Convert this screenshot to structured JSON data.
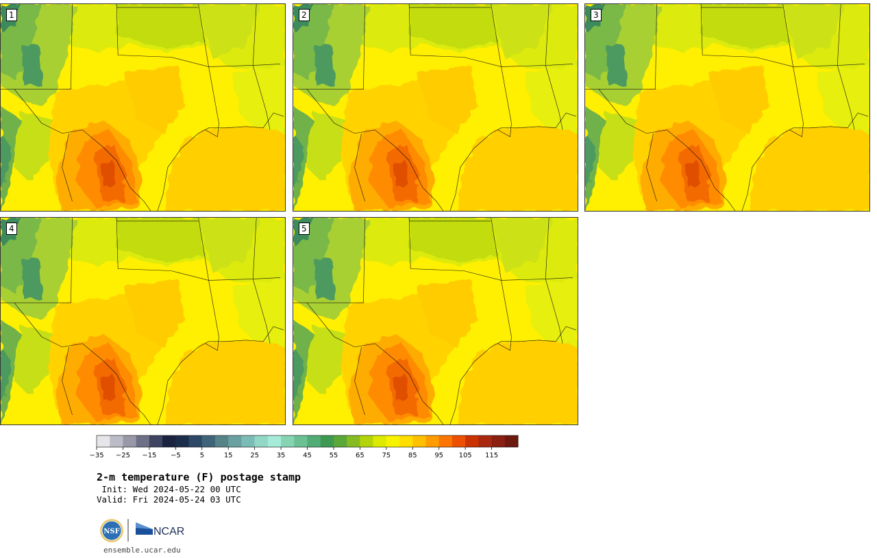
{
  "panels": [
    {
      "label": "1"
    },
    {
      "label": "2"
    },
    {
      "label": "3"
    },
    {
      "label": "4"
    },
    {
      "label": "5"
    }
  ],
  "title": "2-m temperature (F) postage stamp",
  "init_line": " Init: Wed 2024-05-22 00 UTC",
  "valid_line": "Valid: Fri 2024-05-24 03 UTC",
  "logos": {
    "nsf": "NSF",
    "ncar": "NCAR"
  },
  "website": "ensemble.ucar.edu",
  "colorbar": {
    "min": -35,
    "max": 120,
    "step": 5,
    "tick_labels": [
      "−35",
      "−25",
      "−15",
      "−5",
      "5",
      "15",
      "25",
      "35",
      "45",
      "55",
      "65",
      "75",
      "85",
      "95",
      "105",
      "115"
    ],
    "colors": [
      "#e6e6ea",
      "#bcbcc8",
      "#9898a8",
      "#6e7088",
      "#3e4462",
      "#1a2440",
      "#1c2d4c",
      "#2c4866",
      "#3f6479",
      "#568388",
      "#6aa0a0",
      "#7cbcb6",
      "#92d8c6",
      "#a6ead8",
      "#86d4b2",
      "#6cc094",
      "#52ac76",
      "#3e9a52",
      "#5aa838",
      "#86bc22",
      "#b4d40a",
      "#dcea00",
      "#f7f300",
      "#ffde00",
      "#ffc000",
      "#ff9c00",
      "#fb7500",
      "#ec5000",
      "#cc3200",
      "#a82810",
      "#8a1f12",
      "#6c1a10"
    ]
  }
}
